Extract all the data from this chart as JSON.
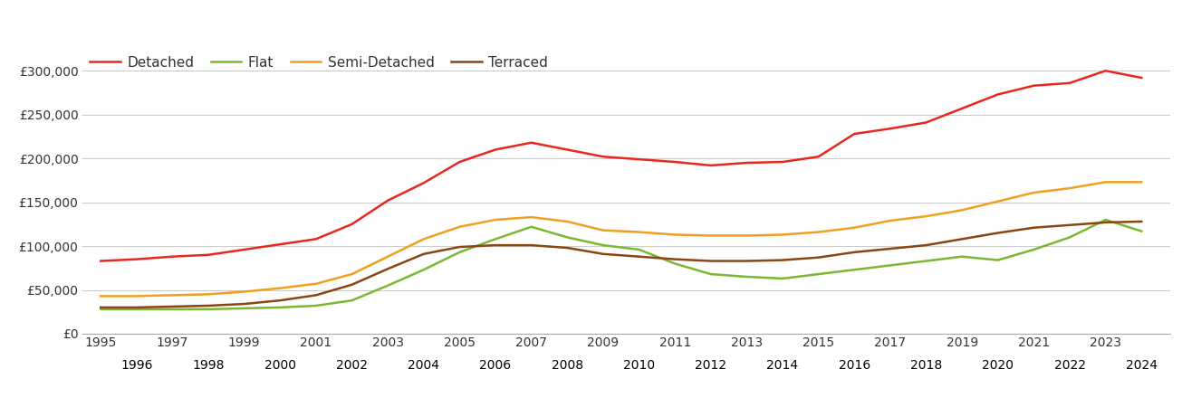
{
  "years": [
    1995,
    1996,
    1997,
    1998,
    1999,
    2000,
    2001,
    2002,
    2003,
    2004,
    2005,
    2006,
    2007,
    2008,
    2009,
    2010,
    2011,
    2012,
    2013,
    2014,
    2015,
    2016,
    2017,
    2018,
    2019,
    2020,
    2021,
    2022,
    2023,
    2024
  ],
  "detached": [
    83000,
    85000,
    88000,
    90000,
    96000,
    102000,
    108000,
    125000,
    152000,
    172000,
    196000,
    210000,
    218000,
    210000,
    202000,
    199000,
    196000,
    192000,
    195000,
    196000,
    202000,
    228000,
    234000,
    241000,
    257000,
    273000,
    283000,
    286000,
    300000,
    292000
  ],
  "flat": [
    28000,
    28000,
    28000,
    28000,
    29000,
    30000,
    32000,
    38000,
    55000,
    73000,
    93000,
    108000,
    122000,
    110000,
    101000,
    96000,
    80000,
    68000,
    65000,
    63000,
    68000,
    73000,
    78000,
    83000,
    88000,
    84000,
    96000,
    110000,
    130000,
    117000
  ],
  "semi_detached": [
    43000,
    43000,
    44000,
    45000,
    48000,
    52000,
    57000,
    68000,
    88000,
    108000,
    122000,
    130000,
    133000,
    128000,
    118000,
    116000,
    113000,
    112000,
    112000,
    113000,
    116000,
    121000,
    129000,
    134000,
    141000,
    151000,
    161000,
    166000,
    173000,
    173000
  ],
  "terraced": [
    30000,
    30000,
    31000,
    32000,
    34000,
    38000,
    44000,
    56000,
    74000,
    91000,
    99000,
    101000,
    101000,
    98000,
    91000,
    88000,
    85000,
    83000,
    83000,
    84000,
    87000,
    93000,
    97000,
    101000,
    108000,
    115000,
    121000,
    124000,
    127000,
    128000
  ],
  "colors": {
    "detached": "#e8281e",
    "flat": "#7bb832",
    "semi_detached": "#f0a020",
    "terraced": "#8B4513"
  },
  "legend_labels": [
    "Detached",
    "Flat",
    "Semi-Detached",
    "Terraced"
  ],
  "ylim": [
    0,
    325000
  ],
  "yticks": [
    0,
    50000,
    100000,
    150000,
    200000,
    250000,
    300000
  ],
  "ytick_labels": [
    "£0",
    "£50,000",
    "£100,000",
    "£150,000",
    "£200,000",
    "£250,000",
    "£300,000"
  ],
  "background_color": "#ffffff",
  "grid_color": "#cccccc",
  "line_width": 1.8,
  "xlim": [
    1994.5,
    2024.8
  ]
}
